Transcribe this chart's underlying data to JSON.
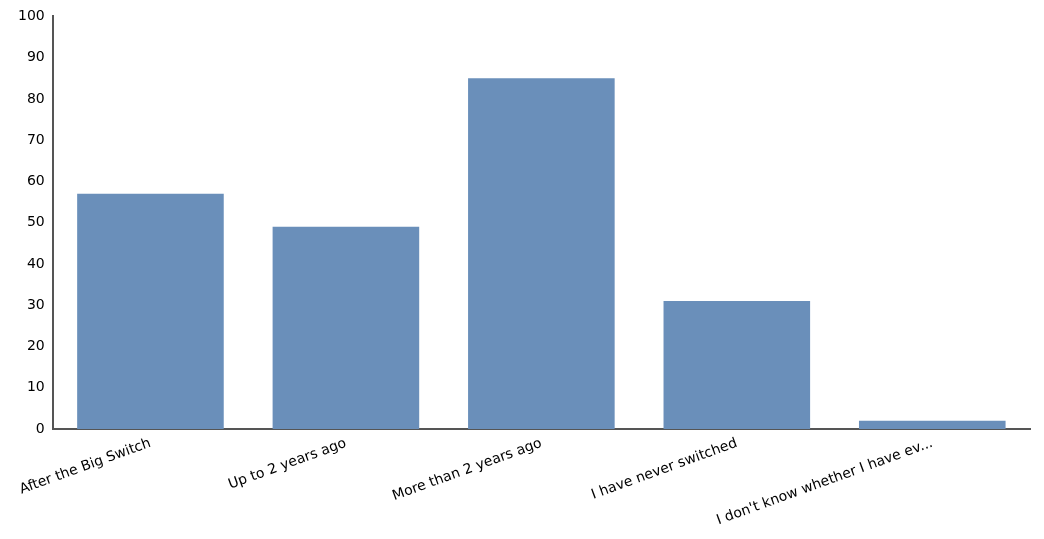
{
  "chart_data": {
    "type": "bar",
    "categories": [
      "After the Big Switch",
      "Up to 2 years ago",
      "More than 2 years ago",
      "I have never switched",
      "I don't know whether I have ev..."
    ],
    "values": [
      57,
      49,
      85,
      31,
      2
    ],
    "color": "#6a8fba",
    "ylim": [
      0,
      100
    ],
    "yticks": [
      0,
      10,
      20,
      30,
      40,
      50,
      60,
      70,
      80,
      90,
      100
    ],
    "grid": false
  }
}
